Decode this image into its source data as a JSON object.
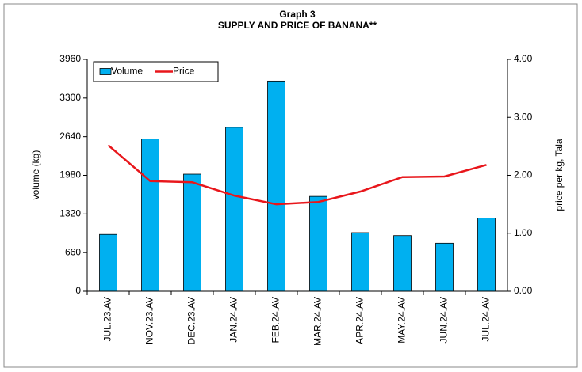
{
  "chart_data": {
    "type": "bar_line",
    "title": "Graph 3",
    "subtitle": "SUPPLY AND PRICE OF BANANA**",
    "y_label": "volume (kg)",
    "y2_label": "price per kg, Tala",
    "categories": [
      "JUL.23.AV",
      "NOV.23.AV",
      "DEC.23.AV",
      "JAN.24.AV",
      "FEB.24.AV",
      "MAR.24.AV",
      "APR.24.AV",
      "MAY.24.AV",
      "JUN.24.AV",
      "JUL.24.AV"
    ],
    "series": [
      {
        "name": "Volume",
        "type": "bar",
        "color": "#00b0f0",
        "values": [
          970,
          2600,
          2000,
          2800,
          3590,
          1620,
          1000,
          950,
          820,
          1250
        ]
      },
      {
        "name": "Price",
        "type": "line",
        "color": "#e8161b",
        "axis": "y2",
        "values": [
          2.52,
          1.9,
          1.88,
          1.65,
          1.5,
          1.54,
          1.72,
          1.97,
          1.98,
          2.18
        ]
      }
    ],
    "ylim": [
      0,
      3960
    ],
    "yticks": [
      0,
      660,
      1320,
      1980,
      2640,
      3300,
      3960
    ],
    "y2lim": [
      0,
      4
    ],
    "y2ticks": [
      {
        "value": 0,
        "label": "0.00"
      },
      {
        "value": 1,
        "label": "1.00"
      },
      {
        "value": 2,
        "label": "2.00"
      },
      {
        "value": 3,
        "label": "3.00"
      },
      {
        "value": 4,
        "label": "4.00"
      }
    ],
    "legend": "top-left"
  }
}
